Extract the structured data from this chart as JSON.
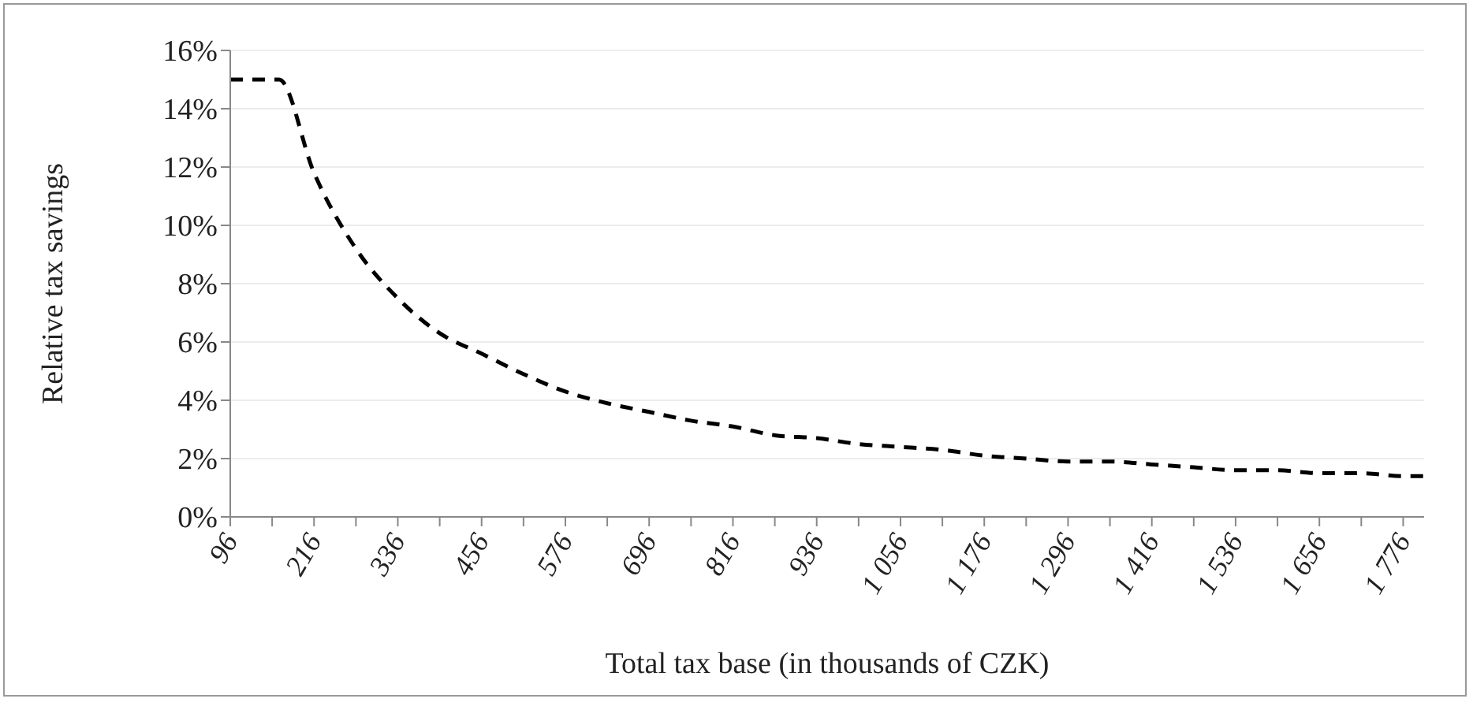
{
  "chart_data": {
    "type": "line",
    "xlabel": "Total tax base (in thousands of CZK)",
    "ylabel": "Relative tax savings",
    "x": [
      96,
      156,
      166,
      216,
      276,
      336,
      396,
      456,
      516,
      576,
      636,
      696,
      756,
      816,
      876,
      936,
      996,
      1056,
      1116,
      1176,
      1236,
      1296,
      1356,
      1416,
      1476,
      1536,
      1596,
      1656,
      1716,
      1776,
      1806
    ],
    "series": [
      {
        "color": "#000000",
        "values": [
          15,
          15,
          15,
          11.8,
          9.2,
          7.5,
          6.3,
          5.6,
          4.9,
          4.3,
          3.9,
          3.6,
          3.3,
          3.1,
          2.8,
          2.7,
          2.5,
          2.4,
          2.3,
          2.1,
          2.0,
          1.9,
          1.9,
          1.8,
          1.7,
          1.6,
          1.6,
          1.5,
          1.5,
          1.4,
          1.4
        ]
      }
    ],
    "xlim": [
      96,
      1806
    ],
    "xticks": [
      96,
      {
        "value": 156,
        "label": null
      },
      216,
      {
        "value": 276,
        "label": null
      },
      336,
      {
        "value": 396,
        "label": null
      },
      456,
      {
        "value": 516,
        "label": null
      },
      576,
      {
        "value": 636,
        "label": null
      },
      696,
      {
        "value": 756,
        "label": null
      },
      816,
      {
        "value": 876,
        "label": null
      },
      936,
      {
        "value": 996,
        "label": null
      },
      {
        "value": 1056,
        "label": "1 056"
      },
      {
        "value": 1116,
        "label": null
      },
      {
        "value": 1176,
        "label": "1 176"
      },
      {
        "value": 1236,
        "label": null
      },
      {
        "value": 1296,
        "label": "1 296"
      },
      {
        "value": 1356,
        "label": null
      },
      {
        "value": 1416,
        "label": "1 416"
      },
      {
        "value": 1476,
        "label": null
      },
      {
        "value": 1536,
        "label": "1 536"
      },
      {
        "value": 1596,
        "label": null
      },
      {
        "value": 1656,
        "label": "1 656"
      },
      {
        "value": 1716,
        "label": null
      },
      {
        "value": 1776,
        "label": "1 776"
      }
    ],
    "ylim": [
      0,
      16
    ],
    "yticks": [
      {
        "value": 0,
        "label": "0%"
      },
      {
        "value": 2,
        "label": "2%"
      },
      {
        "value": 4,
        "label": "4%"
      },
      {
        "value": 6,
        "label": "6%"
      },
      {
        "value": 8,
        "label": "8%"
      },
      {
        "value": 10,
        "label": "10%"
      },
      {
        "value": 12,
        "label": "12%"
      },
      {
        "value": 14,
        "label": "14%"
      },
      {
        "value": 16,
        "label": "16%"
      }
    ],
    "grid": "y",
    "legend": false,
    "marker": "none",
    "line_style": "dashed"
  }
}
